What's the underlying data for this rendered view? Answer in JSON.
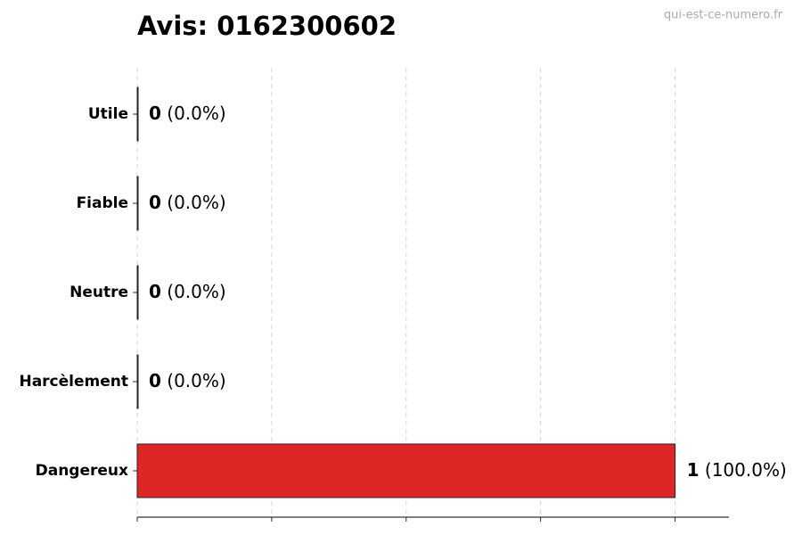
{
  "chart_data": {
    "type": "barh",
    "title": "Avis: 0162300602",
    "watermark": "qui-est-ce-numero.fr",
    "categories": [
      "Utile",
      "Fiable",
      "Neutre",
      "Harcèlement",
      "Dangereux"
    ],
    "values": [
      0,
      0,
      0,
      0,
      1
    ],
    "percentages": [
      0,
      0,
      0,
      0,
      100
    ],
    "percentage_labels": [
      "(0.0%)",
      "(0.0%)",
      "(0.0%)",
      "(0.0%)",
      "(100.0%)"
    ],
    "colors": [
      "#2e9e44",
      "#2e9e44",
      "#9e9e9e",
      "#f28c28",
      "#de2626"
    ],
    "xlim": [
      0,
      1.1
    ],
    "xticks": [
      0,
      0.25,
      0.5,
      0.75,
      1
    ],
    "grid": true
  }
}
